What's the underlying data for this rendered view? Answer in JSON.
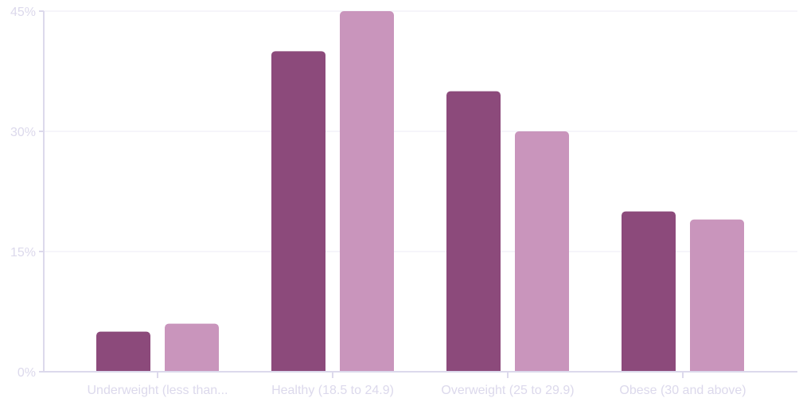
{
  "chart_data": {
    "type": "bar",
    "categories": [
      "Underweight (less than...",
      "Healthy (18.5 to 24.9)",
      "Overweight (25 to 29.9)",
      "Obese (30 and above)"
    ],
    "series": [
      {
        "values": [
          5,
          40,
          35,
          20
        ],
        "color": "#8c4a7b"
      },
      {
        "values": [
          6,
          45,
          30,
          19
        ],
        "color": "#c995bc"
      }
    ],
    "y_ticks": [
      "0%",
      "15%",
      "30%",
      "45%"
    ],
    "ylim": [
      0,
      45
    ],
    "grid": true,
    "axis_color": "#dcd9ec",
    "grid_color": "#f3f2f8"
  }
}
